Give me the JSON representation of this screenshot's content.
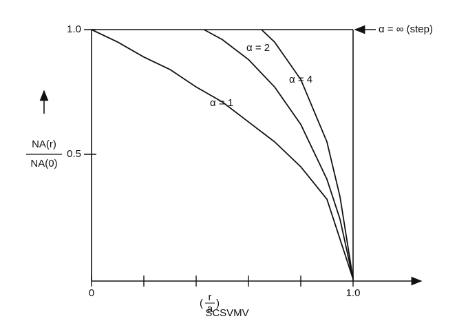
{
  "chart_data": {
    "type": "line",
    "y_label": {
      "numerator": "NA(r)",
      "denominator": "NA(0)"
    },
    "x_label": {
      "numerator": "r",
      "denominator": "a"
    },
    "caption": "SCSVMV",
    "step_label": "α = ∞ (step)",
    "xlim": [
      0,
      1
    ],
    "ylim": [
      0,
      1
    ],
    "xticks": [
      0,
      {
        "value": 1,
        "label": "1.0"
      }
    ],
    "xminor_ticks": [
      0.2,
      0.4,
      0.6,
      0.8
    ],
    "yticks": [
      0.5,
      {
        "value": 1,
        "label": "1.0"
      }
    ],
    "color": "#111111",
    "series": [
      {
        "name": "α = 1",
        "x": [
          0,
          0.1,
          0.2,
          0.3,
          0.4,
          0.5,
          0.6,
          0.7,
          0.8,
          0.9,
          1
        ],
        "values": [
          1,
          0.95,
          0.89,
          0.84,
          0.77,
          0.71,
          0.63,
          0.55,
          0.45,
          0.32,
          0
        ]
      },
      {
        "name": "α = 2",
        "x": [
          0.43,
          0.5,
          0.6,
          0.7,
          0.8,
          0.9,
          0.95,
          1
        ],
        "values": [
          1,
          0.96,
          0.88,
          0.77,
          0.62,
          0.4,
          0.24,
          0
        ]
      },
      {
        "name": "α = 4",
        "x": [
          0.65,
          0.7,
          0.8,
          0.9,
          0.95,
          1
        ],
        "values": [
          1,
          0.95,
          0.8,
          0.55,
          0.33,
          0
        ]
      }
    ]
  }
}
